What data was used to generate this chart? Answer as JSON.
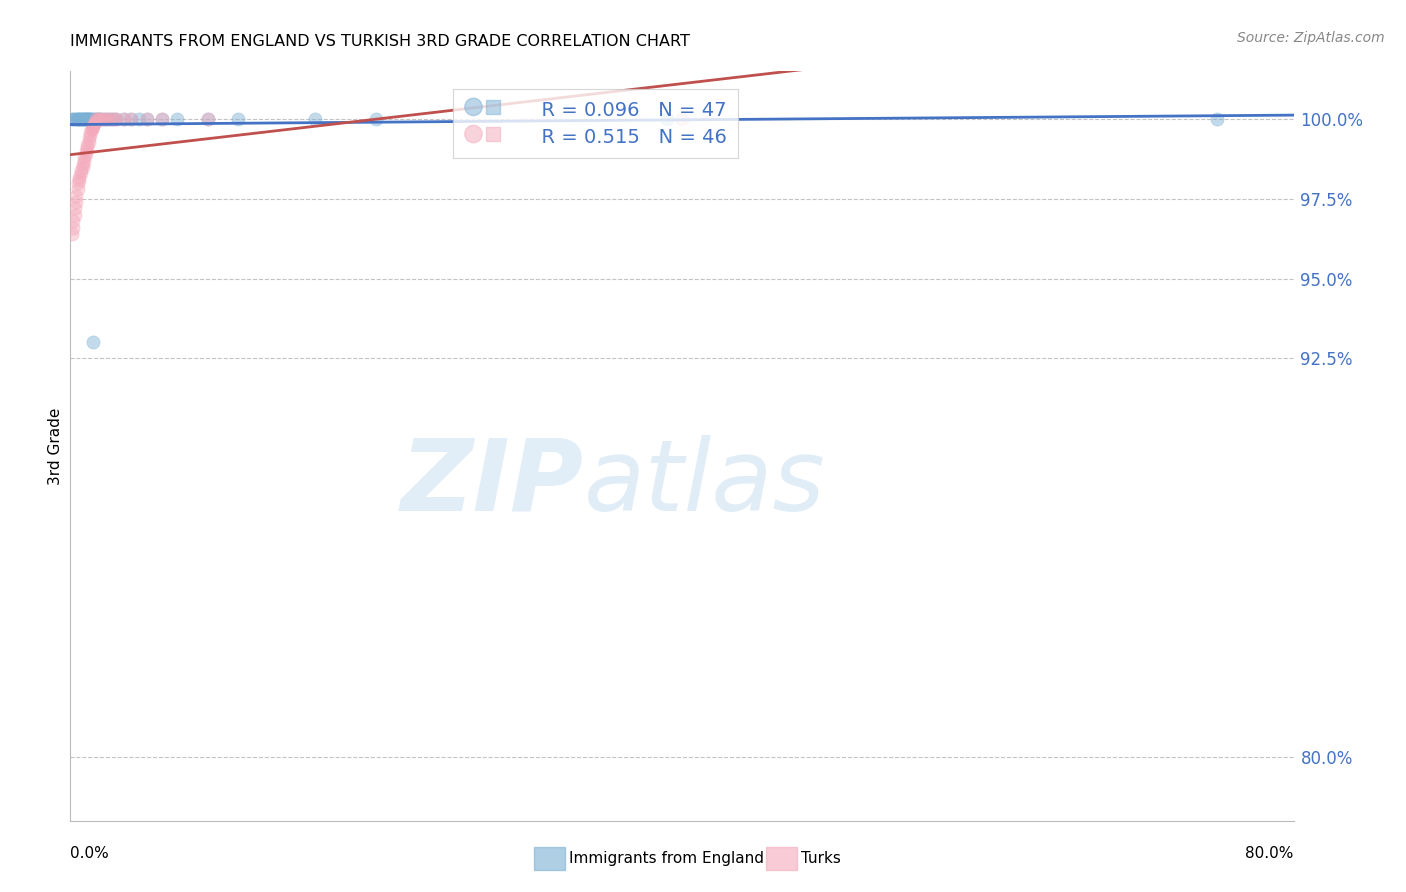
{
  "title": "IMMIGRANTS FROM ENGLAND VS TURKISH 3RD GRADE CORRELATION CHART",
  "source": "Source: ZipAtlas.com",
  "ylabel": "3rd Grade",
  "ytick_labels": [
    "100.0%",
    "97.5%",
    "95.0%",
    "92.5%",
    "80.0%"
  ],
  "ytick_values": [
    1.0,
    0.975,
    0.95,
    0.925,
    0.8
  ],
  "xlim": [
    0.0,
    0.8
  ],
  "ylim": [
    0.78,
    1.015
  ],
  "legend_entry1": "R = 0.096   N = 47",
  "legend_entry2": "R = 0.515   N = 46",
  "legend_label1": "Immigrants from England",
  "legend_label2": "Turks",
  "blue_color": "#7BAFD4",
  "pink_color": "#F4A9BB",
  "line_blue": "#4472C4",
  "line_pink": "#C0504D",
  "eng_x": [
    0.001,
    0.002,
    0.003,
    0.004,
    0.005,
    0.005,
    0.006,
    0.006,
    0.007,
    0.007,
    0.008,
    0.008,
    0.009,
    0.009,
    0.01,
    0.01,
    0.011,
    0.011,
    0.012,
    0.012,
    0.013,
    0.013,
    0.014,
    0.015,
    0.016,
    0.017,
    0.018,
    0.019,
    0.02,
    0.022,
    0.024,
    0.026,
    0.028,
    0.03,
    0.035,
    0.04,
    0.045,
    0.05,
    0.06,
    0.07,
    0.09,
    0.11,
    0.16,
    0.2,
    0.39,
    0.75,
    0.015
  ],
  "eng_y": [
    1.0,
    1.0,
    1.0,
    1.0,
    1.0,
    1.0,
    1.0,
    1.0,
    1.0,
    1.0,
    1.0,
    1.0,
    1.0,
    1.0,
    1.0,
    1.0,
    1.0,
    1.0,
    1.0,
    1.0,
    1.0,
    1.0,
    1.0,
    1.0,
    1.0,
    1.0,
    1.0,
    1.0,
    1.0,
    1.0,
    1.0,
    1.0,
    1.0,
    1.0,
    1.0,
    1.0,
    1.0,
    1.0,
    1.0,
    1.0,
    1.0,
    1.0,
    1.0,
    1.0,
    1.0,
    1.0,
    0.93
  ],
  "turk_x": [
    0.001,
    0.002,
    0.002,
    0.003,
    0.003,
    0.004,
    0.004,
    0.005,
    0.005,
    0.006,
    0.006,
    0.007,
    0.007,
    0.008,
    0.008,
    0.009,
    0.009,
    0.01,
    0.01,
    0.011,
    0.011,
    0.012,
    0.012,
    0.013,
    0.013,
    0.014,
    0.014,
    0.015,
    0.015,
    0.016,
    0.016,
    0.017,
    0.018,
    0.019,
    0.02,
    0.022,
    0.024,
    0.026,
    0.028,
    0.03,
    0.035,
    0.04,
    0.05,
    0.06,
    0.09,
    0.4
  ],
  "turk_y": [
    0.964,
    0.966,
    0.968,
    0.97,
    0.972,
    0.974,
    0.976,
    0.978,
    0.98,
    0.981,
    0.982,
    0.983,
    0.984,
    0.985,
    0.986,
    0.987,
    0.988,
    0.989,
    0.99,
    0.991,
    0.992,
    0.993,
    0.994,
    0.995,
    0.996,
    0.997,
    0.997,
    0.998,
    0.998,
    0.999,
    0.999,
    1.0,
    1.0,
    1.0,
    1.0,
    1.0,
    1.0,
    1.0,
    1.0,
    1.0,
    1.0,
    1.0,
    1.0,
    1.0,
    1.0,
    1.0
  ],
  "marker_size": 90,
  "alpha": 0.45,
  "grid_color": "#AAAAAA",
  "grid_linestyle": "--"
}
